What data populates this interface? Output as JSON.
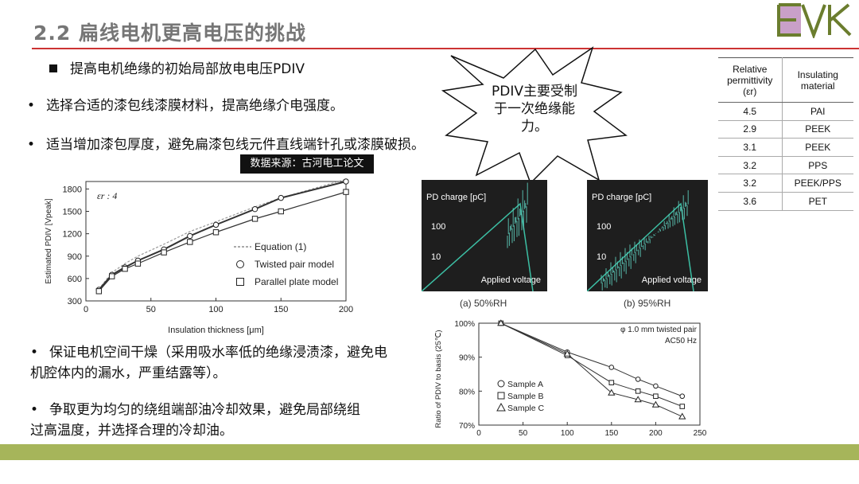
{
  "title": "2.2 扁线电机更高电压的挑战",
  "logo": {
    "text": "EVK",
    "colors": [
      "#c9a0c8",
      "#6b7d2e"
    ]
  },
  "heading": "提高电机绝缘的初始局部放电电压PDIV",
  "bullets_top": [
    "选择合适的漆包线漆膜材料，提高绝缘介电强度。",
    "适当增加漆包厚度，避免扁漆包线元件直线端针孔或漆膜破损。"
  ],
  "source_tag": "数据来源：古河电工论文",
  "callout": "PDIV主要受制于一次绝缘能力。",
  "bullets_bottom": [
    "保证电机空间干燥（采用吸水率低的绝缘浸渍漆，避免电机腔体内的漏水，严重结露等）。",
    "争取更为均匀的绕组端部油冷却效果，避免局部绕组过高温度，并选择合理的冷却油。"
  ],
  "table": {
    "headers": [
      "Relative permittivity (εr)",
      "Insulating material"
    ],
    "rows": [
      [
        "4.5",
        "PAI"
      ],
      [
        "2.9",
        "PEEK"
      ],
      [
        "3.1",
        "PEEK"
      ],
      [
        "3.2",
        "PPS"
      ],
      [
        "3.2",
        "PEEK/PPS"
      ],
      [
        "3.6",
        "PET"
      ]
    ]
  },
  "photos": [
    {
      "caption": "(a) 50%RH",
      "ylabel": "PD charge [pC]",
      "tick_hi": "100",
      "tick_lo": "10",
      "xlabel": "Applied voltage"
    },
    {
      "caption": "(b) 95%RH",
      "ylabel": "PD charge [pC]",
      "tick_hi": "100",
      "tick_lo": "10",
      "xlabel": "Applied voltage"
    }
  ],
  "chart_data": [
    {
      "type": "line",
      "annotation": "εr : 4",
      "xlabel": "Insulation thickness [μm]",
      "ylabel": "Estimated PDIV [Vpeak]",
      "xlim": [
        0,
        200
      ],
      "ylim": [
        300,
        1900
      ],
      "xticks": [
        0,
        50,
        100,
        150,
        200
      ],
      "yticks": [
        300,
        600,
        900,
        1200,
        1500,
        1800
      ],
      "legend": "bottom-right",
      "series": [
        {
          "name": "Equation (1)",
          "style": "dashed",
          "x": [
            10,
            20,
            30,
            40,
            60,
            80,
            100,
            130,
            150,
            200
          ],
          "y": [
            460,
            680,
            800,
            900,
            1060,
            1230,
            1360,
            1560,
            1680,
            1930
          ]
        },
        {
          "name": "Twisted pair model",
          "marker": "circle",
          "x": [
            10,
            20,
            30,
            40,
            60,
            80,
            100,
            130,
            150,
            200
          ],
          "y": [
            450,
            650,
            750,
            840,
            990,
            1170,
            1320,
            1530,
            1680,
            1900
          ]
        },
        {
          "name": "Parallel plate model",
          "marker": "square",
          "x": [
            10,
            20,
            30,
            40,
            60,
            80,
            100,
            130,
            150,
            200
          ],
          "y": [
            430,
            630,
            730,
            800,
            950,
            1090,
            1220,
            1400,
            1500,
            1760
          ]
        }
      ]
    },
    {
      "type": "line",
      "annotation": [
        "φ 1.0 mm twisted pair",
        "AC50 Hz"
      ],
      "xlabel": "",
      "ylabel": "Ratio of PDIV to basis (25℃)",
      "xlim": [
        0,
        250
      ],
      "ylim": [
        70,
        100
      ],
      "xticks": [
        0,
        50,
        100,
        150,
        200,
        250
      ],
      "yticks": [
        70,
        80,
        90,
        100
      ],
      "ytick_labels": [
        "70%",
        "80%",
        "90%",
        "100%"
      ],
      "legend": "bottom-left",
      "series": [
        {
          "name": "Sample A",
          "marker": "circle",
          "x": [
            25,
            100,
            150,
            180,
            200,
            230
          ],
          "y": [
            100,
            91.5,
            87,
            83.5,
            81.5,
            78.5
          ]
        },
        {
          "name": "Sample B",
          "marker": "square",
          "x": [
            25,
            100,
            150,
            180,
            200,
            230
          ],
          "y": [
            100,
            90.5,
            82.5,
            80,
            78.5,
            75.5
          ]
        },
        {
          "name": "Sample C",
          "marker": "triangle",
          "x": [
            25,
            100,
            150,
            180,
            200,
            230
          ],
          "y": [
            100,
            91,
            79.5,
            77.5,
            76,
            72.5
          ]
        }
      ]
    }
  ]
}
